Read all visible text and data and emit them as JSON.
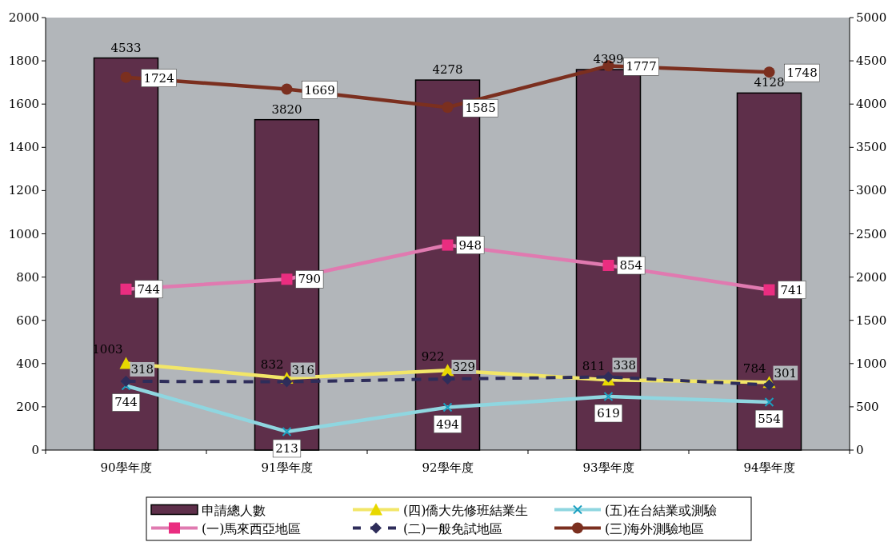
{
  "chart_data": {
    "type": "bar",
    "categories": [
      "90學年度",
      "91學年度",
      "92學年度",
      "93學年度",
      "94學年度"
    ],
    "series": [
      {
        "name": "申請總人數",
        "axis": "y2",
        "color": "#5e2f4a",
        "values": [
          4533,
          3820,
          4278,
          4399,
          4128
        ]
      },
      {
        "name": "(四)僑大先修班結業生",
        "type": "line",
        "axis": "y2",
        "color": "#f2e668",
        "marker": "triangle",
        "line_style": "solid",
        "values": [
          1003,
          832,
          922,
          811,
          784
        ]
      },
      {
        "name": "(五)在台結業或測驗",
        "type": "line",
        "axis": "y2",
        "color": "#8fd6e0",
        "marker": "cross",
        "line_style": "solid",
        "values": [
          744,
          213,
          494,
          619,
          554
        ]
      },
      {
        "name": "(一)馬來西亞地區",
        "type": "line",
        "color": "#e07ab0",
        "marker": "square",
        "line_style": "solid",
        "values": [
          744,
          790,
          948,
          854,
          741
        ]
      },
      {
        "name": "(二)一般免試地區",
        "type": "line",
        "color": "#2e2d5a",
        "marker": "diamond",
        "line_style": "dashed",
        "values": [
          318,
          316,
          329,
          338,
          301
        ]
      },
      {
        "name": "(三)海外測驗地區",
        "type": "line",
        "color": "#7b2f1f",
        "marker": "circle",
        "line_style": "solid",
        "values": [
          1724,
          1669,
          1585,
          1777,
          1748
        ]
      }
    ],
    "ylim": [
      0,
      2000
    ],
    "yticks": [
      0,
      200,
      400,
      600,
      800,
      1000,
      1200,
      1400,
      1600,
      1800,
      2000
    ],
    "y2lim": [
      0,
      5000
    ],
    "y2ticks": [
      0,
      500,
      1000,
      1500,
      2000,
      2500,
      3000,
      3500,
      4000,
      4500,
      5000
    ],
    "data_labels": true,
    "legend": "bottom",
    "grid": false
  }
}
